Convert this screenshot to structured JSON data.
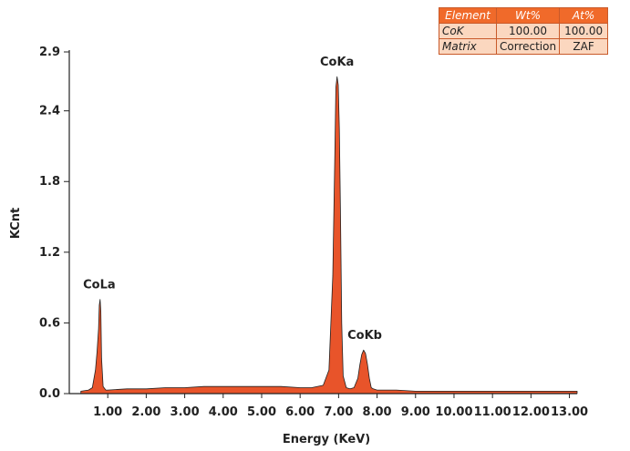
{
  "chart_data": {
    "type": "area",
    "xlabel": "Energy (KeV)",
    "ylabel": "KCnt",
    "xlim": [
      0.0,
      13.2
    ],
    "ylim": [
      0.0,
      2.9
    ],
    "x_ticks": [
      1,
      2,
      3,
      4,
      5,
      6,
      7,
      8,
      9,
      10,
      11,
      12,
      13
    ],
    "x_tick_labels": [
      "1.00",
      "2.00",
      "3.00",
      "4.00",
      "5.00",
      "6.00",
      "7.00",
      "8.00",
      "9.00",
      "10.00",
      "11.00",
      "12.00",
      "13.00"
    ],
    "y_ticks": [
      0.0,
      0.6,
      1.2,
      1.8,
      2.4,
      2.9
    ],
    "y_tick_labels": [
      "0.0",
      "0.6",
      "1.2",
      "1.8",
      "2.4",
      "2.9"
    ],
    "series_color": "#e8542a",
    "series_outline": "#222222",
    "x": [
      0.3,
      0.5,
      0.6,
      0.68,
      0.72,
      0.76,
      0.78,
      0.8,
      0.82,
      0.84,
      0.88,
      0.95,
      1.0,
      1.5,
      2.0,
      2.5,
      3.0,
      3.5,
      4.0,
      4.5,
      5.0,
      5.5,
      6.0,
      6.3,
      6.6,
      6.75,
      6.85,
      6.9,
      6.93,
      6.96,
      6.99,
      7.02,
      7.05,
      7.08,
      7.12,
      7.2,
      7.3,
      7.4,
      7.5,
      7.55,
      7.6,
      7.65,
      7.7,
      7.75,
      7.8,
      7.85,
      7.9,
      8.0,
      8.5,
      9.0,
      10.0,
      11.0,
      12.0,
      13.0,
      13.2
    ],
    "y": [
      0.02,
      0.03,
      0.05,
      0.2,
      0.35,
      0.55,
      0.75,
      0.8,
      0.7,
      0.3,
      0.06,
      0.03,
      0.03,
      0.04,
      0.04,
      0.05,
      0.05,
      0.06,
      0.06,
      0.06,
      0.06,
      0.06,
      0.05,
      0.05,
      0.07,
      0.2,
      1.0,
      2.0,
      2.6,
      2.69,
      2.62,
      2.25,
      1.5,
      0.6,
      0.15,
      0.05,
      0.04,
      0.05,
      0.13,
      0.24,
      0.33,
      0.37,
      0.34,
      0.25,
      0.13,
      0.05,
      0.04,
      0.03,
      0.03,
      0.02,
      0.02,
      0.02,
      0.02,
      0.02,
      0.02
    ],
    "annotations": [
      {
        "text": "CoLa",
        "x": 0.78,
        "y": 0.8
      },
      {
        "text": "CoKa",
        "x": 6.96,
        "y": 2.69
      },
      {
        "text": "CoKb",
        "x": 7.68,
        "y": 0.37
      }
    ]
  },
  "composition_table": {
    "headers": [
      "Element",
      "Wt%",
      "At%"
    ],
    "rows": [
      [
        "CoK",
        "100.00",
        "100.00"
      ],
      [
        "Matrix",
        "Correction",
        "ZAF"
      ]
    ]
  }
}
